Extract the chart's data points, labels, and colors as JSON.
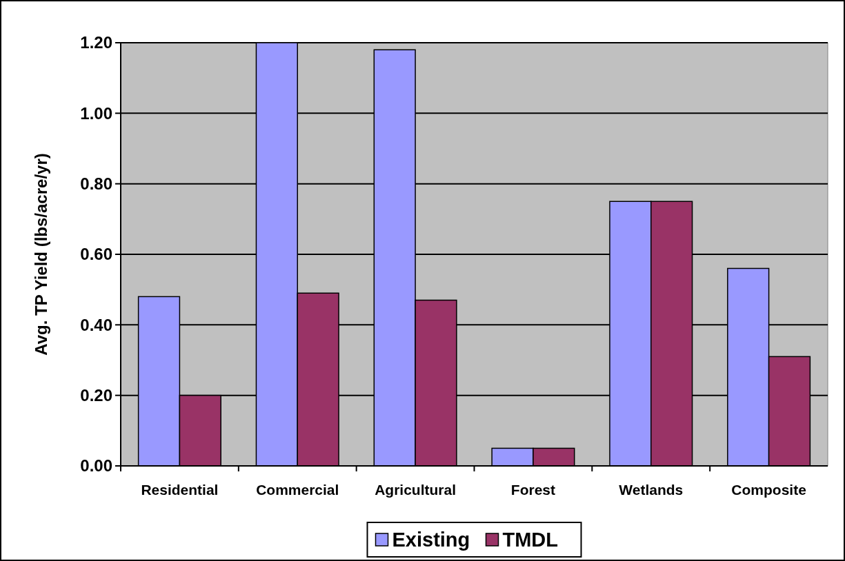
{
  "chart_data": {
    "type": "bar",
    "ylabel": "Avg. TP Yield (lbs/acre/yr)",
    "categories": [
      "Residential",
      "Commercial",
      "Agricultural",
      "Forest",
      "Wetlands",
      "Composite"
    ],
    "series": [
      {
        "name": "Existing",
        "color": "#9999ff",
        "values": [
          0.48,
          1.2,
          1.18,
          0.05,
          0.75,
          0.56
        ]
      },
      {
        "name": "TMDL",
        "color": "#993366",
        "values": [
          0.2,
          0.49,
          0.47,
          0.05,
          0.75,
          0.31
        ]
      }
    ],
    "ylim": [
      0,
      1.2
    ],
    "yticks": [
      {
        "value": 0,
        "label": "0.00"
      },
      {
        "value": 0.2,
        "label": "0.20"
      },
      {
        "value": 0.4,
        "label": "0.40"
      },
      {
        "value": 0.6,
        "label": "0.60"
      },
      {
        "value": 0.8,
        "label": "0.80"
      },
      {
        "value": 1.0,
        "label": "1.00"
      },
      {
        "value": 1.2,
        "label": "1.20"
      }
    ],
    "grid": "y",
    "legend": "bottom"
  }
}
